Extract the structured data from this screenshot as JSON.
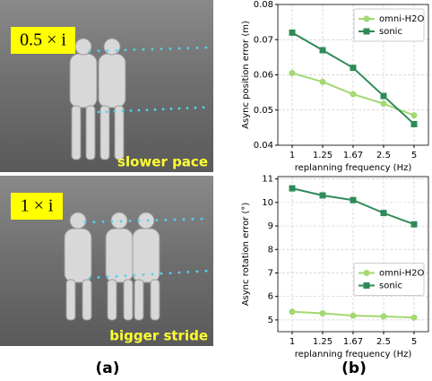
{
  "figure": {
    "panel_a": {
      "top_label": "0.5 × i",
      "top_caption": "slower pace",
      "bottom_label": "1 × i",
      "bottom_caption": "bigger stride",
      "caption": "(a)"
    },
    "panel_b": {
      "caption": "(b)"
    }
  },
  "chart_data": [
    {
      "type": "line",
      "xlabel": "replanning frequency (Hz)",
      "ylabel": "Async position error (m)",
      "categories": [
        "1",
        "1.25",
        "1.67",
        "2.5",
        "5"
      ],
      "series": [
        {
          "name": "omni-H2O",
          "color": "#a3d873",
          "values": [
            0.0605,
            0.058,
            0.0545,
            0.0518,
            0.0485
          ]
        },
        {
          "name": "sonic",
          "color": "#2e8b57",
          "values": [
            0.072,
            0.067,
            0.062,
            0.054,
            0.046
          ]
        }
      ],
      "ylim": [
        0.04,
        0.08
      ],
      "yticks": [
        0.04,
        0.05,
        0.06,
        0.07,
        0.08
      ],
      "grid": true,
      "legend": "upper right"
    },
    {
      "type": "line",
      "xlabel": "replanning frequency (Hz)",
      "ylabel": "Async rotation error (°)",
      "categories": [
        "1",
        "1.25",
        "1.67",
        "2.5",
        "5"
      ],
      "series": [
        {
          "name": "omni-H2O",
          "color": "#a3d873",
          "values": [
            5.35,
            5.28,
            5.18,
            5.15,
            5.1
          ]
        },
        {
          "name": "sonic",
          "color": "#2e8b57",
          "values": [
            10.6,
            10.3,
            10.1,
            9.55,
            9.07
          ]
        }
      ],
      "ylim": [
        4.5,
        11.1
      ],
      "yticks": [
        5,
        6,
        7,
        8,
        9,
        10,
        11
      ],
      "grid": true,
      "legend": "center right"
    }
  ]
}
